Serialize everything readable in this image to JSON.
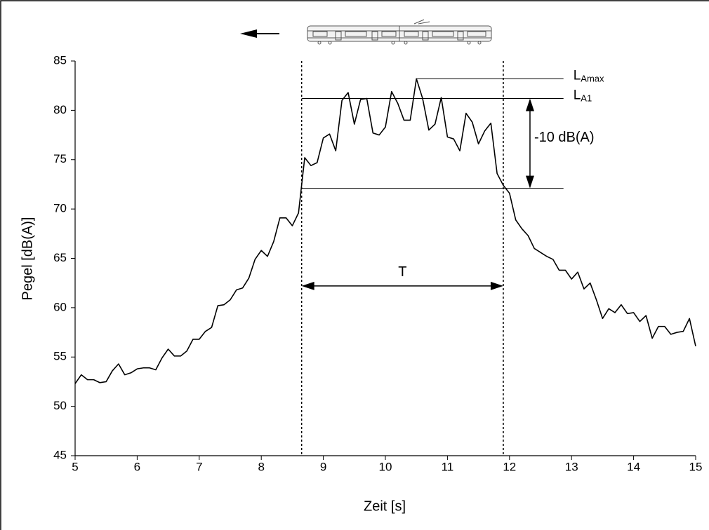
{
  "chart_data": {
    "type": "line",
    "x_label": "Zeit [s]",
    "y_label": "Pegel [dB(A)]",
    "x": [
      5,
      5.1,
      5.2,
      5.3,
      5.4,
      5.5,
      5.6,
      5.7,
      5.8,
      5.9,
      6,
      6.1,
      6.2,
      6.3,
      6.4,
      6.5,
      6.6,
      6.7,
      6.8,
      6.9,
      7,
      7.1,
      7.2,
      7.3,
      7.4,
      7.5,
      7.6,
      7.7,
      7.8,
      7.9,
      8,
      8.1,
      8.2,
      8.3,
      8.4,
      8.5,
      8.6,
      8.7,
      8.8,
      8.9,
      9,
      9.1,
      9.2,
      9.3,
      9.4,
      9.5,
      9.6,
      9.7,
      9.8,
      9.9,
      10,
      10.1,
      10.2,
      10.3,
      10.4,
      10.5,
      10.6,
      10.7,
      10.8,
      10.9,
      11,
      11.1,
      11.2,
      11.3,
      11.4,
      11.5,
      11.6,
      11.7,
      11.8,
      11.9,
      12,
      12.1,
      12.2,
      12.3,
      12.4,
      12.5,
      12.6,
      12.7,
      12.8,
      12.9,
      13,
      13.1,
      13.2,
      13.3,
      13.4,
      13.5,
      13.6,
      13.7,
      13.8,
      13.9,
      14,
      14.1,
      14.2,
      14.3,
      14.4,
      14.5,
      14.6,
      14.7,
      14.8,
      14.9,
      15
    ],
    "values": [
      52.3,
      53.2,
      52.7,
      52.7,
      52.4,
      52.5,
      53.6,
      54.3,
      53.2,
      53.4,
      53.8,
      53.9,
      53.9,
      53.7,
      54.9,
      55.8,
      55.1,
      55.1,
      55.6,
      56.8,
      56.8,
      57.6,
      58.0,
      60.2,
      60.3,
      60.8,
      61.8,
      62.0,
      63.0,
      64.9,
      65.8,
      65.2,
      66.7,
      69.1,
      69.1,
      68.3,
      69.6,
      75.2,
      74.4,
      74.7,
      77.2,
      77.6,
      75.9,
      81.0,
      81.8,
      78.6,
      81.1,
      81.2,
      77.7,
      77.5,
      78.3,
      81.9,
      80.7,
      79.0,
      79.0,
      83.2,
      81.2,
      78.0,
      78.6,
      81.3,
      77.3,
      77.1,
      75.9,
      79.7,
      78.8,
      76.6,
      77.9,
      78.7,
      73.6,
      72.4,
      71.6,
      68.9,
      68.0,
      67.3,
      66.0,
      65.6,
      65.2,
      64.9,
      63.8,
      63.8,
      62.9,
      63.6,
      61.9,
      62.5,
      60.8,
      58.9,
      59.9,
      59.5,
      60.3,
      59.4,
      59.5,
      58.6,
      59.2,
      56.9,
      58.1,
      58.1,
      57.3,
      57.5,
      57.6,
      58.9,
      56.1
    ],
    "color": "#000000",
    "xlim": [
      5,
      15
    ],
    "xticks": [
      5,
      6,
      7,
      8,
      9,
      10,
      11,
      12,
      13,
      14,
      15
    ],
    "ylim": [
      45,
      85
    ],
    "yticks": [
      45,
      50,
      55,
      60,
      65,
      70,
      75,
      80,
      85
    ],
    "grid": false,
    "annotations": {
      "vlines": [
        8.65,
        11.9
      ],
      "hlines": [
        {
          "y": 83.2,
          "x0": 10.5,
          "x1": 12.87
        },
        {
          "y": 81.2,
          "x0": 8.65,
          "x1": 12.87
        },
        {
          "y": 72.1,
          "x0": 8.65,
          "x1": 12.87
        }
      ],
      "labels": [
        {
          "text": "L",
          "sub": "Amax",
          "y": 83.2
        },
        {
          "text": "L",
          "sub": "A1",
          "y": 81.2
        }
      ],
      "dim_v": {
        "x": 12.33,
        "y0": 81.2,
        "y1": 72.1,
        "label": "-10 dB(A)"
      },
      "dim_h": {
        "y": 62.2,
        "x0": 8.65,
        "x1": 11.9,
        "label": "T"
      }
    }
  }
}
